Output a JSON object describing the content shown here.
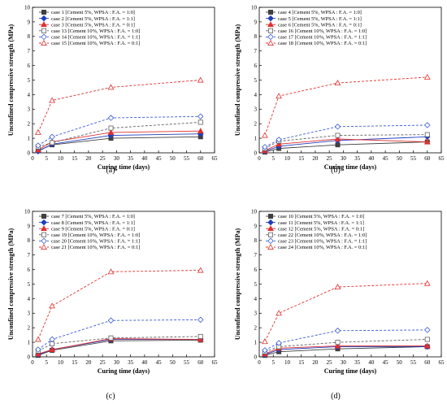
{
  "chart_data": [
    {
      "type": "line",
      "panel_label": "(a)",
      "xlabel": "Curing time (days)",
      "ylabel": "Unconfined compressive strength (MPa)",
      "xlim": [
        0,
        65
      ],
      "ylim": [
        0,
        10
      ],
      "x_ticks": [
        "0",
        "5",
        "10",
        "15",
        "20",
        "25",
        "30",
        "35",
        "40",
        "45",
        "50",
        "55",
        "60",
        "65"
      ],
      "y_ticks": [
        "0",
        "1",
        "2",
        "3",
        "4",
        "5",
        "6",
        "7",
        "8",
        "9",
        "10"
      ],
      "legend_position": "top-left",
      "x": [
        2,
        7,
        28,
        60
      ],
      "series": [
        {
          "name": "case 1 [Cement 5%, WPSA : F.A. = 1:0]",
          "values": [
            0.15,
            0.55,
            1.0,
            1.1
          ],
          "color": "#404040",
          "marker": "square",
          "dash": "solid"
        },
        {
          "name": "case 2 [Cement 5%, WPSA : F.A. = 1:1]",
          "values": [
            0.1,
            0.6,
            1.2,
            1.3
          ],
          "color": "#1f3fbf",
          "marker": "diamond",
          "dash": "solid"
        },
        {
          "name": "case 3 [Cement 5%, WPSA : F.A. = 0:1]",
          "values": [
            0.2,
            0.75,
            1.4,
            1.5
          ],
          "color": "#e03030",
          "marker": "triangle",
          "dash": "solid"
        },
        {
          "name": "case 13 [Cement 10%, WPSA : F.A. = 1:0]",
          "values": [
            0.4,
            0.7,
            1.7,
            2.1
          ],
          "color": "#606060",
          "marker": "square-open",
          "dash": "dashed"
        },
        {
          "name": "case 14 [Cement 10%, WPSA : F.A. = 1:1]",
          "values": [
            0.5,
            1.1,
            2.4,
            2.5
          ],
          "color": "#3a5ad9",
          "marker": "diamond-open",
          "dash": "dashed"
        },
        {
          "name": "case 15 [Cement 10%, WPSA : F.A. = 0:1]",
          "values": [
            1.4,
            3.6,
            4.5,
            5.0
          ],
          "color": "#e03030",
          "marker": "triangle-open",
          "dash": "dashed"
        }
      ]
    },
    {
      "type": "line",
      "panel_label": "(b)",
      "xlabel": "Curing time (days)",
      "ylabel": "Unconfined compressive strength (MPa)",
      "xlim": [
        0,
        65
      ],
      "ylim": [
        0,
        10
      ],
      "x_ticks": [
        "0",
        "5",
        "10",
        "15",
        "20",
        "25",
        "30",
        "35",
        "40",
        "45",
        "50",
        "55",
        "60",
        "65"
      ],
      "y_ticks": [
        "0",
        "1",
        "2",
        "3",
        "4",
        "5",
        "6",
        "7",
        "8",
        "9",
        "10"
      ],
      "legend_position": "top-left",
      "x": [
        2,
        7,
        28,
        60
      ],
      "series": [
        {
          "name": "case 4 [Cement 5%, WPSA : F.A. = 1:0]",
          "values": [
            0.05,
            0.3,
            0.55,
            0.75
          ],
          "color": "#404040",
          "marker": "square",
          "dash": "solid"
        },
        {
          "name": "case 5 [Cement 5%, WPSA : F.A. = 1:1]",
          "values": [
            0.1,
            0.45,
            0.85,
            1.1
          ],
          "color": "#1f3fbf",
          "marker": "diamond",
          "dash": "solid"
        },
        {
          "name": "case 6 [Cement 5%, WPSA : F.A. = 0:1]",
          "values": [
            0.15,
            0.6,
            0.95,
            0.75
          ],
          "color": "#e03030",
          "marker": "triangle",
          "dash": "solid"
        },
        {
          "name": "case 16 [Cement 10%, WPSA : F.A. = 1:0]",
          "values": [
            0.3,
            0.8,
            1.2,
            1.25
          ],
          "color": "#606060",
          "marker": "square-open",
          "dash": "dashed"
        },
        {
          "name": "case 17 [Cement 10%, WPSA : F.A. = 1:1]",
          "values": [
            0.4,
            0.9,
            1.8,
            1.9
          ],
          "color": "#3a5ad9",
          "marker": "diamond-open",
          "dash": "dashed"
        },
        {
          "name": "case 18 [Cement 10%, WPSA : F.A. = 0:1]",
          "values": [
            1.2,
            3.9,
            4.8,
            5.2
          ],
          "color": "#e03030",
          "marker": "triangle-open",
          "dash": "dashed"
        }
      ]
    },
    {
      "type": "line",
      "panel_label": "(c)",
      "xlabel": "Curing time (days)",
      "ylabel": "Unconfined compressive strength (MPa)",
      "xlim": [
        0,
        65
      ],
      "ylim": [
        0,
        10
      ],
      "x_ticks": [
        "0",
        "5",
        "10",
        "15",
        "20",
        "25",
        "30",
        "35",
        "40",
        "45",
        "50",
        "55",
        "60",
        "65"
      ],
      "y_ticks": [
        "0",
        "1",
        "2",
        "3",
        "4",
        "5",
        "6",
        "7",
        "8",
        "9",
        "10"
      ],
      "legend_position": "top-left",
      "x": [
        2,
        7,
        28,
        60
      ],
      "series": [
        {
          "name": "case 7 [Cement 5%, WPSA : F.A. = 1:0]",
          "values": [
            0.1,
            0.45,
            1.1,
            1.15
          ],
          "color": "#404040",
          "marker": "square",
          "dash": "solid"
        },
        {
          "name": "case 8 [Cement 5%, WPSA : F.A. = 1:1]",
          "values": [
            0.15,
            0.5,
            1.2,
            1.2
          ],
          "color": "#1f3fbf",
          "marker": "diamond",
          "dash": "solid"
        },
        {
          "name": "case 9 [Cement 5%, WPSA : F.A. = 0:1]",
          "values": [
            0.2,
            0.5,
            1.25,
            1.2
          ],
          "color": "#e03030",
          "marker": "triangle",
          "dash": "solid"
        },
        {
          "name": "case 19 [Cement 10%, WPSA : F.A. = 1:0]",
          "values": [
            0.4,
            0.9,
            1.3,
            1.4
          ],
          "color": "#606060",
          "marker": "square-open",
          "dash": "dashed"
        },
        {
          "name": "case 20 [Cement 10%, WPSA : F.A. = 1:1]",
          "values": [
            0.5,
            1.2,
            2.5,
            2.55
          ],
          "color": "#3a5ad9",
          "marker": "diamond-open",
          "dash": "dashed"
        },
        {
          "name": "case 21 [Cement 10%, WPSA : F.A. = 0:1]",
          "values": [
            1.2,
            3.5,
            5.85,
            5.95
          ],
          "color": "#e03030",
          "marker": "triangle-open",
          "dash": "dashed"
        }
      ]
    },
    {
      "type": "line",
      "panel_label": "(d)",
      "xlabel": "Curing time (days)",
      "ylabel": "Unconfined compressive strength (MPa)",
      "xlim": [
        0,
        65
      ],
      "ylim": [
        0,
        10
      ],
      "x_ticks": [
        "0",
        "5",
        "10",
        "15",
        "20",
        "25",
        "30",
        "35",
        "40",
        "45",
        "50",
        "55",
        "60",
        "65"
      ],
      "y_ticks": [
        "0",
        "1",
        "2",
        "3",
        "4",
        "5",
        "6",
        "7",
        "8",
        "9",
        "10"
      ],
      "legend_position": "top-left",
      "x": [
        2,
        7,
        28,
        60
      ],
      "series": [
        {
          "name": "case 10 [Cement 5%, WPSA : F.A. = 1:0]",
          "values": [
            0.1,
            0.35,
            0.55,
            0.7
          ],
          "color": "#404040",
          "marker": "square",
          "dash": "solid"
        },
        {
          "name": "case 11 [Cement 5%, WPSA : F.A. = 1:1]",
          "values": [
            0.15,
            0.5,
            0.7,
            0.7
          ],
          "color": "#1f3fbf",
          "marker": "diamond",
          "dash": "solid"
        },
        {
          "name": "case 12 [Cement 5%, WPSA : F.A. = 0:1]",
          "values": [
            0.2,
            0.6,
            0.75,
            0.75
          ],
          "color": "#e03030",
          "marker": "triangle",
          "dash": "solid"
        },
        {
          "name": "case 22 [Cement 10%, WPSA : F.A. = 1:0]",
          "values": [
            0.35,
            0.7,
            1.0,
            1.2
          ],
          "color": "#606060",
          "marker": "square-open",
          "dash": "dashed"
        },
        {
          "name": "case 23 [Cement 10%, WPSA : F.A. = 1:1]",
          "values": [
            0.45,
            0.95,
            1.8,
            1.85
          ],
          "color": "#3a5ad9",
          "marker": "diamond-open",
          "dash": "dashed"
        },
        {
          "name": "case 24 [Cement 10%, WPSA : F.A. = 0:1]",
          "values": [
            1.05,
            3.0,
            4.8,
            5.05
          ],
          "color": "#e03030",
          "marker": "triangle-open",
          "dash": "dashed"
        }
      ]
    }
  ]
}
